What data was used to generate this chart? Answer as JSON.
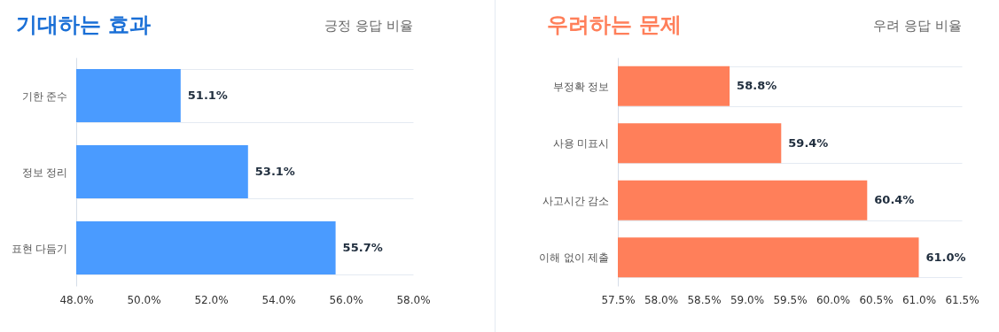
{
  "chart_data": [
    {
      "type": "bar",
      "orientation": "horizontal",
      "title": "기대하는 효과",
      "subtitle": "긍정 응답 비율",
      "categories": [
        "기한 준수",
        "정보 정리",
        "표현 다듬기"
      ],
      "values": [
        51.1,
        53.1,
        55.7
      ],
      "color": "#4a9bff",
      "value_labels": [
        "51.1%",
        "53.1%",
        "55.7%"
      ],
      "xlim": [
        48,
        58
      ],
      "xticks": [
        {
          "value": 48,
          "label": "48.0%"
        },
        {
          "value": 50,
          "label": "50.0%"
        },
        {
          "value": 52,
          "label": "52.0%"
        },
        {
          "value": 54,
          "label": "54.0%"
        },
        {
          "value": 56,
          "label": "56.0%"
        },
        {
          "value": 58,
          "label": "58.0%"
        }
      ],
      "grid": "y"
    },
    {
      "type": "bar",
      "orientation": "horizontal",
      "title": "우려하는 문제",
      "subtitle": "우려 응답 비율",
      "categories": [
        "부정확 정보",
        "사용 미표시",
        "사고시간 감소",
        "이해 없이 제출"
      ],
      "values": [
        58.8,
        59.4,
        60.4,
        61.0
      ],
      "color": "#ff7f5a",
      "value_labels": [
        "58.8%",
        "59.4%",
        "60.4%",
        "61.0%"
      ],
      "xlim": [
        57.5,
        61.5
      ],
      "xticks": [
        {
          "value": 57.5,
          "label": "57.5%"
        },
        {
          "value": 58,
          "label": "58.0%"
        },
        {
          "value": 58.5,
          "label": "58.5%"
        },
        {
          "value": 59,
          "label": "59.0%"
        },
        {
          "value": 59.5,
          "label": "59.5%"
        },
        {
          "value": 60,
          "label": "60.0%"
        },
        {
          "value": 60.5,
          "label": "60.5%"
        },
        {
          "value": 61,
          "label": "61.0%"
        },
        {
          "value": 61.5,
          "label": "61.5%"
        }
      ],
      "grid": "y"
    }
  ]
}
